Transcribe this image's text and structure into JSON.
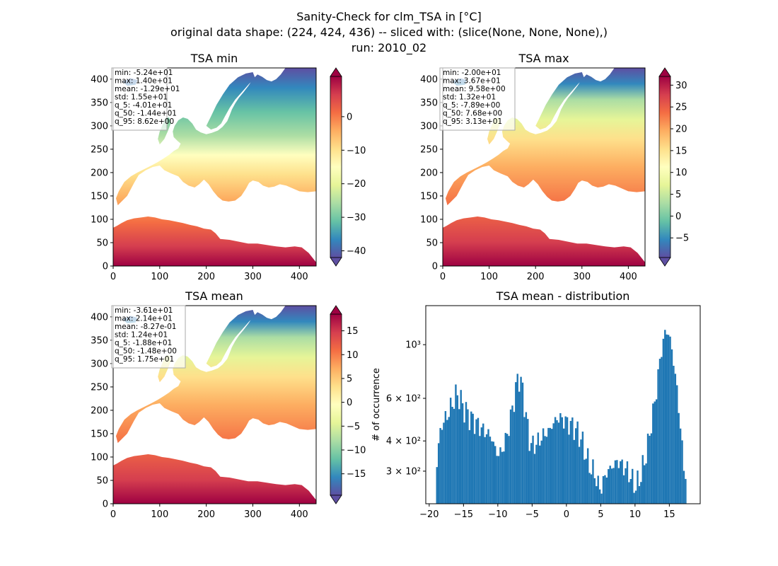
{
  "figure": {
    "title_lines": [
      "Sanity-Check for clm_TSA in [°C]",
      "original data shape: (224, 424, 436) -- sliced with: (slice(None, None, None),)",
      "run: 2010_02"
    ]
  },
  "colors": {
    "land_cold": "#5e4fa2",
    "land_cool": "#3288bd",
    "land_mild": "#66c2a5",
    "land_neutral": "#ffffbf",
    "land_warm": "#f46d43",
    "land_hot": "#9e0142",
    "histogram_bar": "#1f77b4",
    "axis": "#000000",
    "background": "#ffffff"
  },
  "chart_data": [
    {
      "type": "heatmap",
      "title": "TSA min",
      "xlim": [
        0,
        436
      ],
      "ylim": [
        0,
        424
      ],
      "xticks": [
        "0",
        "100",
        "200",
        "300",
        "400"
      ],
      "yticks": [
        "0",
        "50",
        "100",
        "150",
        "200",
        "250",
        "300",
        "350",
        "400"
      ],
      "colormap": "Spectral_r",
      "colorbar": {
        "range": [
          -42,
          12
        ],
        "ticks": [
          "0",
          "−10",
          "−20",
          "−30",
          "−40"
        ],
        "tick_values": [
          0,
          -10,
          -20,
          -30,
          -40
        ],
        "extend": "both"
      },
      "stats": [
        "min: -5.24e+01",
        "max: 1.40e+01",
        "mean: -1.29e+01",
        "std: 1.55e+01",
        "q_5: -4.01e+01",
        "q_50: -1.44e+01",
        "q_95: 8.62e+00"
      ],
      "grid": false
    },
    {
      "type": "heatmap",
      "title": "TSA max",
      "xlim": [
        0,
        436
      ],
      "ylim": [
        0,
        424
      ],
      "xticks": [
        "0",
        "100",
        "200",
        "300",
        "400"
      ],
      "yticks": [
        "0",
        "50",
        "100",
        "150",
        "200",
        "250",
        "300",
        "350",
        "400"
      ],
      "colormap": "Spectral_r",
      "colorbar": {
        "range": [
          -9.5,
          32
        ],
        "ticks": [
          "30",
          "25",
          "20",
          "15",
          "10",
          "5",
          "0",
          "−5"
        ],
        "tick_values": [
          30,
          25,
          20,
          15,
          10,
          5,
          0,
          -5
        ],
        "extend": "both"
      },
      "stats": [
        "min: -2.00e+01",
        "max: 3.67e+01",
        "mean: 9.58e+00",
        "std: 1.32e+01",
        "q_5: -7.89e+00",
        "q_50: 7.68e+00",
        "q_95: 3.13e+01"
      ],
      "grid": false
    },
    {
      "type": "heatmap",
      "title": "TSA mean",
      "xlim": [
        0,
        436
      ],
      "ylim": [
        0,
        424
      ],
      "xticks": [
        "0",
        "100",
        "200",
        "300",
        "400"
      ],
      "yticks": [
        "0",
        "50",
        "100",
        "150",
        "200",
        "250",
        "300",
        "350",
        "400"
      ],
      "colormap": "Spectral_r",
      "colorbar": {
        "range": [
          -19.5,
          18.5
        ],
        "ticks": [
          "15",
          "10",
          "5",
          "0",
          "−5",
          "−10",
          "−15"
        ],
        "tick_values": [
          15,
          10,
          5,
          0,
          -5,
          -10,
          -15
        ],
        "extend": "both"
      },
      "stats": [
        "min: -3.61e+01",
        "max: 2.14e+01",
        "mean: -8.27e-01",
        "std: 1.24e+01",
        "q_5: -1.88e+01",
        "q_50: -1.48e+00",
        "q_95: 1.75e+01"
      ],
      "grid": false
    },
    {
      "type": "bar",
      "title": "TSA mean - distribution",
      "ylabel": "# of occurrence",
      "yscale": "log",
      "xlim": [
        -20.5,
        19.5
      ],
      "ylim": [
        220,
        1450
      ],
      "xticks": [
        "−20",
        "−15",
        "−10",
        "−5",
        "0",
        "5",
        "10",
        "15"
      ],
      "xtick_values": [
        -20,
        -15,
        -10,
        -5,
        0,
        5,
        10,
        15
      ],
      "yticks": [
        "3 × 10²",
        "4 × 10²",
        "6 × 10²",
        "10³"
      ],
      "ytick_values": [
        300,
        400,
        600,
        1000
      ],
      "bin_width": 0.25,
      "profile": {
        "x": [
          -19,
          -18.5,
          -18,
          -17.5,
          -17,
          -16.5,
          -16,
          -15.5,
          -15,
          -14,
          -13,
          -12,
          -11,
          -10.5,
          -10,
          -9.5,
          -9,
          -8.5,
          -8,
          -7.5,
          -7,
          -6.5,
          -6,
          -5.5,
          -5,
          -4.5,
          -4,
          -3.5,
          -3,
          -2.5,
          -2,
          -1.5,
          -1,
          -0.5,
          0,
          0.5,
          1,
          1.5,
          2,
          2.5,
          3,
          3.5,
          4,
          4.5,
          5,
          5.5,
          6,
          6.5,
          7,
          7.5,
          8,
          8.5,
          9,
          9.5,
          10,
          10.5,
          11,
          11.5,
          12,
          12.5,
          13,
          13.5,
          14,
          14.5,
          15,
          15.5,
          16,
          16.5,
          17,
          17.5
        ],
        "y": [
          290,
          420,
          480,
          500,
          540,
          580,
          630,
          600,
          550,
          500,
          470,
          440,
          420,
          380,
          350,
          360,
          390,
          440,
          520,
          620,
          750,
          680,
          540,
          420,
          380,
          390,
          400,
          420,
          430,
          440,
          470,
          490,
          500,
          490,
          480,
          470,
          460,
          440,
          420,
          380,
          340,
          310,
          300,
          270,
          250,
          280,
          300,
          310,
          320,
          330,
          320,
          310,
          300,
          280,
          260,
          270,
          300,
          340,
          400,
          500,
          600,
          800,
          1000,
          1150,
          1100,
          900,
          700,
          500,
          330,
          280
        ]
      }
    }
  ]
}
